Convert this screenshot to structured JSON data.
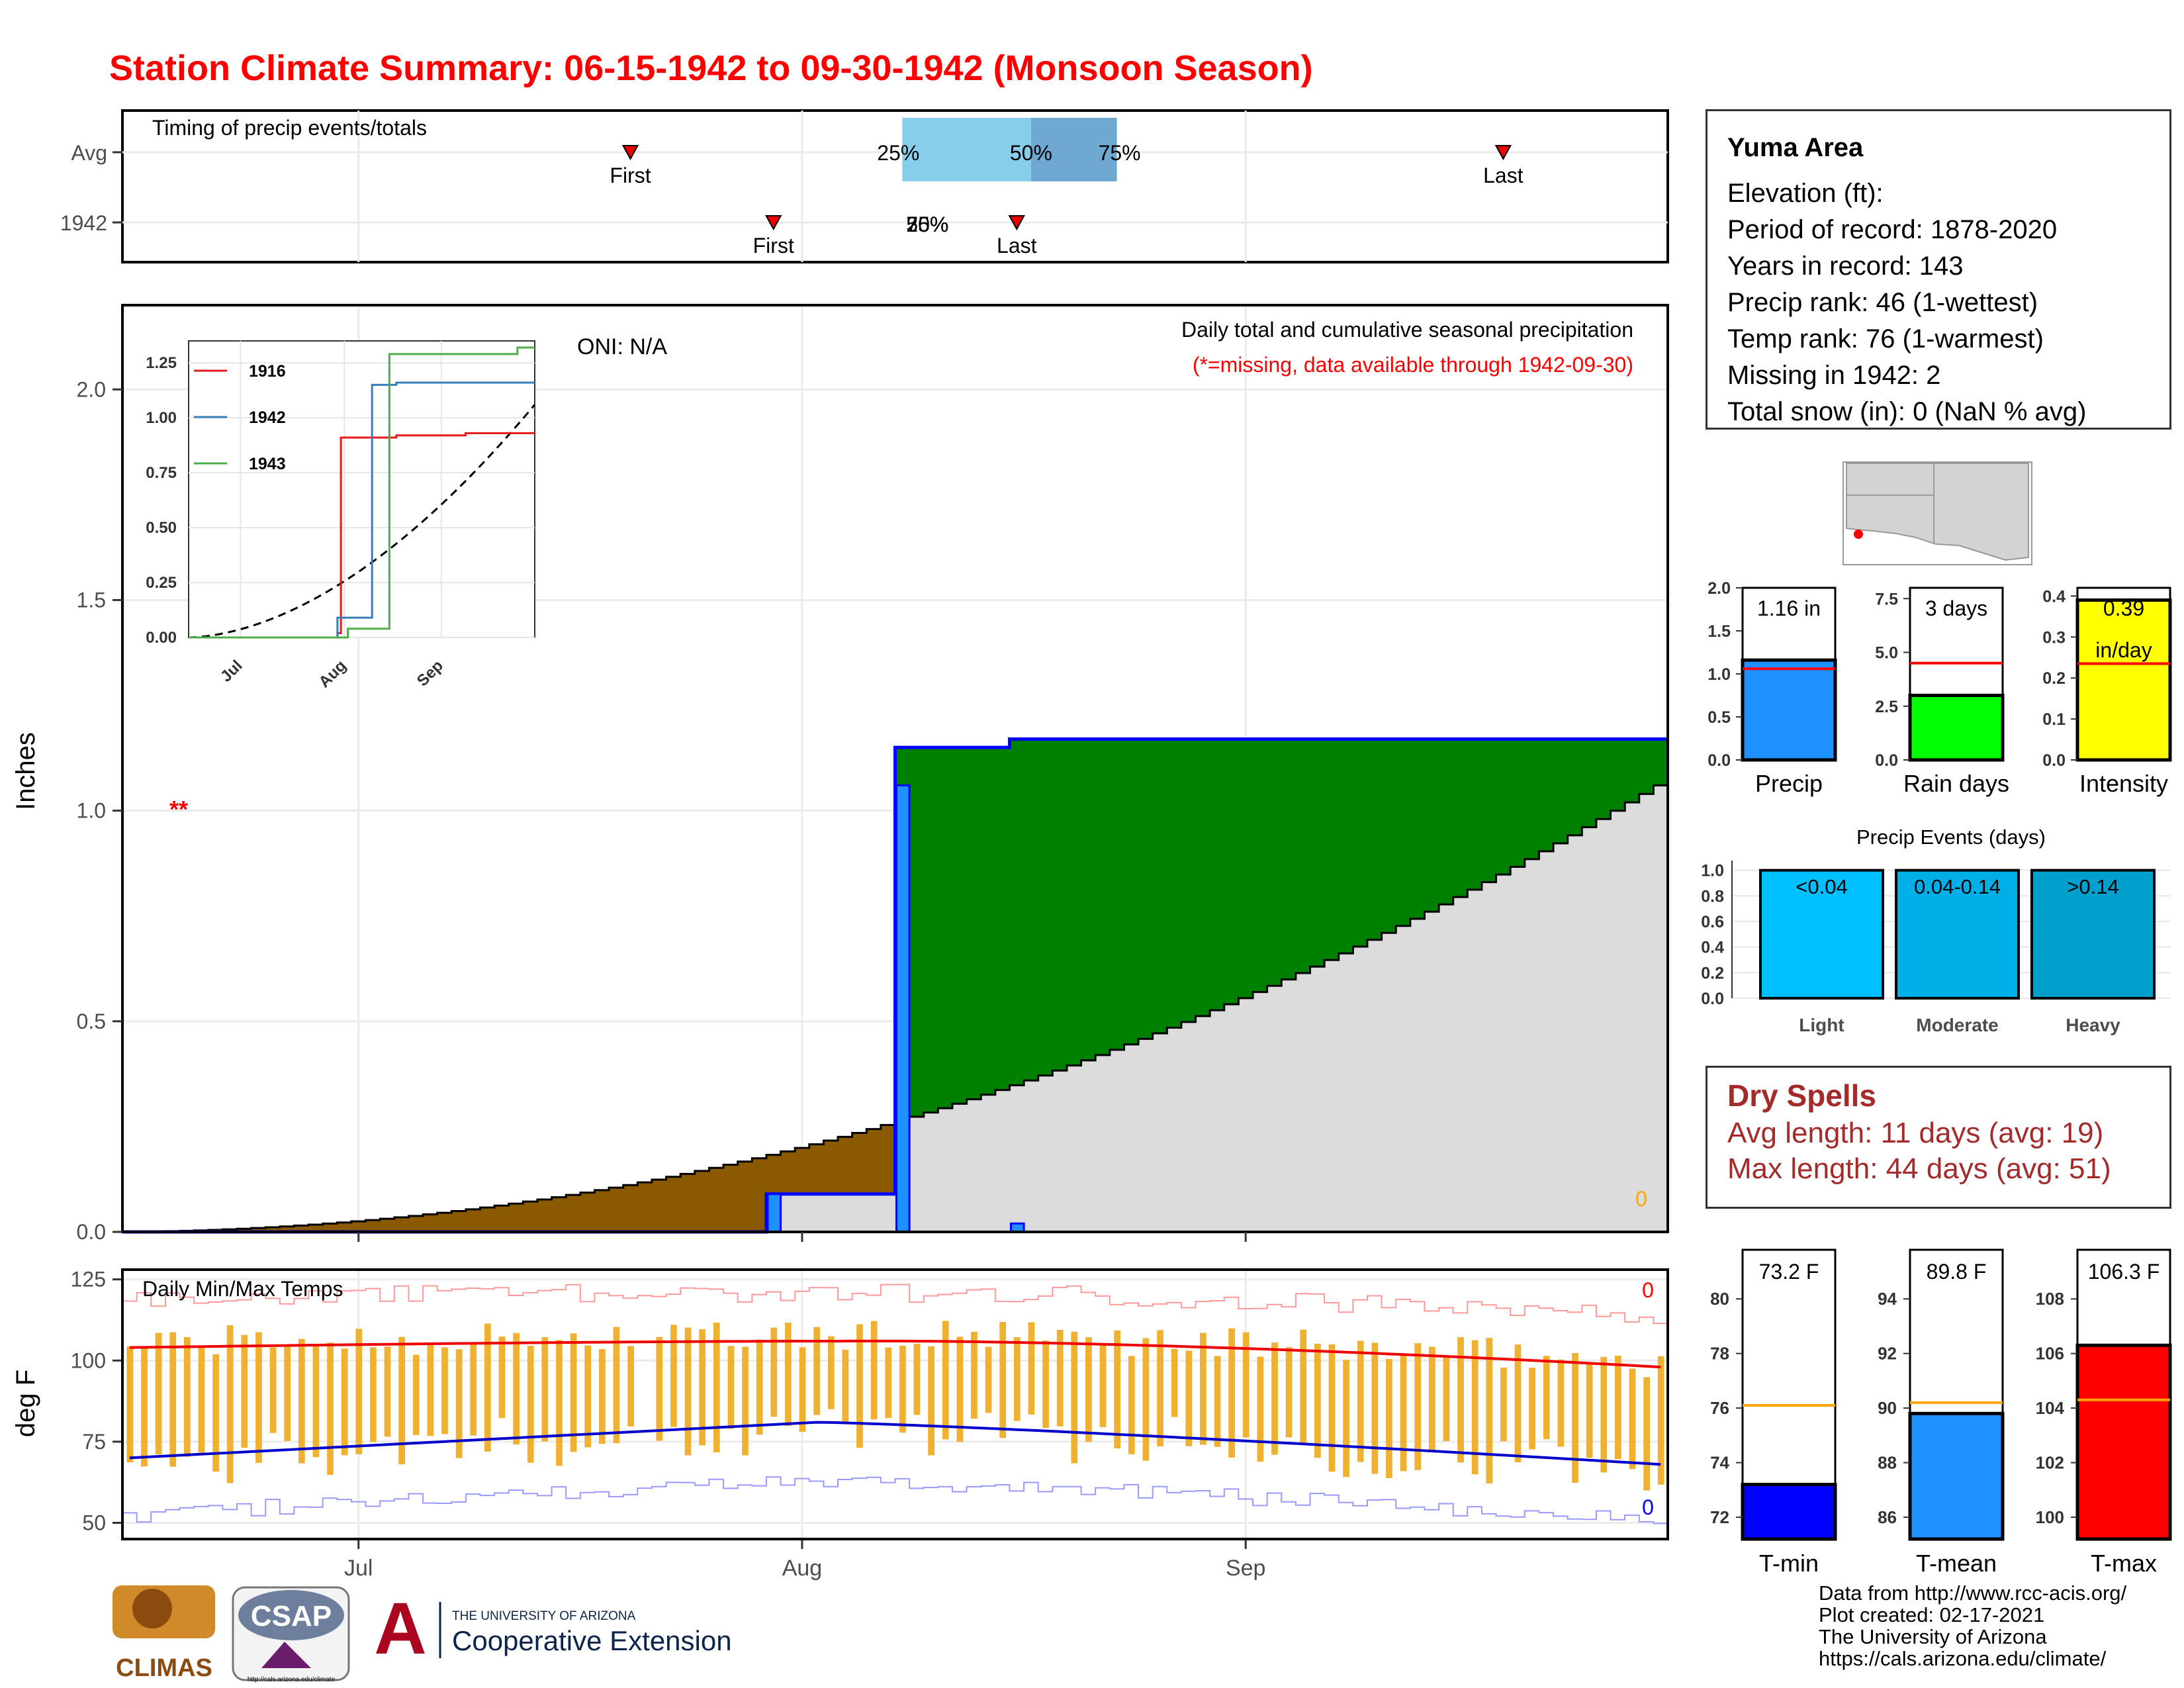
{
  "title": "Station Climate Summary: 06-15-1942 to 09-30-1942 (Monsoon Season)",
  "timing_panel": {
    "label": "Timing of precip events/totals",
    "rows": [
      "Avg",
      "1942"
    ],
    "avg": {
      "first_date": "1942-07-20",
      "last_date": "1942-09-19",
      "p25_date": "1942-08-08",
      "p50_date": "1942-08-17",
      "p75_date": "1942-08-23",
      "first_label": "First",
      "last_label": "Last",
      "p25_label": "25%",
      "p50_label": "50%",
      "p75_label": "75%"
    },
    "y1942": {
      "first_date": "1942-07-30",
      "last_date": "1942-08-16",
      "first_label": "First",
      "last_label": "Last",
      "pct_label": "25%50%75%"
    }
  },
  "precip_panel": {
    "ylabel": "Inches",
    "oni": "ONI: N/A",
    "caption": "Daily total and cumulative seasonal precipitation",
    "caption_missing": "(*=missing, data available through 1942-09-30)",
    "missing_marker": "**",
    "corner_value": "0",
    "yticks": [
      "0.0",
      "0.5",
      "1.0",
      "1.5",
      "2.0"
    ],
    "ylim": [
      0,
      2.2
    ]
  },
  "inset": {
    "yticks": [
      "0.00",
      "0.25",
      "0.50",
      "0.75",
      "1.00",
      "1.25"
    ],
    "xticks": [
      "Jul",
      "Aug",
      "Sep"
    ],
    "legend": [
      {
        "label": "1916",
        "color": "#e41a1c"
      },
      {
        "label": "1942",
        "color": "#377eb8"
      },
      {
        "label": "1943",
        "color": "#4daf4a"
      }
    ]
  },
  "temp_panel": {
    "label": "Daily Min/Max Temps",
    "ylabel": "deg F",
    "yticks": [
      "50",
      "75",
      "100",
      "125"
    ],
    "xticks": [
      "Jul",
      "Aug",
      "Sep"
    ],
    "max_count": "0",
    "min_count": "0"
  },
  "station": {
    "name": "Yuma Area",
    "lines": [
      "Elevation (ft):",
      "Period of record: 1878-2020",
      "Years in record: 143",
      "Precip rank: 46 (1-wettest)",
      "Temp rank: 76 (1-warmest)",
      "Missing in 1942: 2",
      "Total snow (in): 0 (NaN % avg)"
    ]
  },
  "summary_bars": [
    {
      "label": "Precip",
      "value_label": "1.16 in",
      "value": 1.16,
      "avg": 1.06,
      "color": "#1e90ff",
      "yticks": [
        "0.0",
        "0.5",
        "1.0",
        "1.5",
        "2.0"
      ],
      "ymin": 0,
      "ymax": 2.0,
      "tickvals": [
        0,
        0.5,
        1,
        1.5,
        2
      ]
    },
    {
      "label": "Rain days",
      "value_label": "3 days",
      "value": 3,
      "avg": 4.5,
      "color": "#00ff00",
      "yticks": [
        "0.0",
        "2.5",
        "5.0",
        "7.5"
      ],
      "ymin": 0,
      "ymax": 8.0,
      "tickvals": [
        0,
        2.5,
        5,
        7.5
      ]
    },
    {
      "label": "Intensity",
      "value_label": "0.39",
      "unit_label": "in/day",
      "value": 0.39,
      "avg": 0.235,
      "color": "#ffff00",
      "yticks": [
        "0.0",
        "0.1",
        "0.2",
        "0.3",
        "0.4"
      ],
      "ymin": 0,
      "ymax": 0.42,
      "tickvals": [
        0,
        0.1,
        0.2,
        0.3,
        0.4
      ]
    }
  ],
  "events": {
    "title": "Precip Events (days)",
    "yticks": [
      "0.0",
      "0.2",
      "0.4",
      "0.6",
      "0.8",
      "1.0"
    ],
    "bars": [
      {
        "label": "Light",
        "range": "<0.04",
        "value": 1.0,
        "color": "#00bfff"
      },
      {
        "label": "Moderate",
        "range": "0.04-0.14",
        "value": 1.0,
        "color": "#00afe8"
      },
      {
        "label": "Heavy",
        "range": ">0.14",
        "value": 1.0,
        "color": "#009fcc"
      }
    ]
  },
  "dry_spells": {
    "title": "Dry Spells",
    "avg_line": "Avg length: 11 days (avg: 19)",
    "max_line": "Max length: 44 days (avg: 51)"
  },
  "temp_bars": [
    {
      "label": "T-min",
      "value_label": "73.2 F",
      "value": 73.2,
      "avg": 76.1,
      "color": "#0000ff",
      "yticks": [
        "72",
        "74",
        "76",
        "78",
        "80"
      ],
      "tickvals": [
        72,
        74,
        76,
        78,
        80
      ],
      "ymin": 71.2,
      "ymax": 81.8
    },
    {
      "label": "T-mean",
      "value_label": "89.8 F",
      "value": 89.8,
      "avg": 90.2,
      "color": "#1e90ff",
      "yticks": [
        "86",
        "88",
        "90",
        "92",
        "94"
      ],
      "tickvals": [
        86,
        88,
        90,
        92,
        94
      ],
      "ymin": 85.2,
      "ymax": 95.8
    },
    {
      "label": "T-max",
      "value_label": "106.3 F",
      "value": 106.3,
      "avg": 104.3,
      "color": "#ff0000",
      "yticks": [
        "100",
        "102",
        "104",
        "106",
        "108"
      ],
      "tickvals": [
        100,
        102,
        104,
        106,
        108
      ],
      "ymin": 99.2,
      "ymax": 109.8
    }
  ],
  "credits": [
    "Data from http://www.rcc-acis.org/",
    "Plot created: 02-17-2021",
    "The University of Arizona",
    "https://cals.arizona.edu/climate/"
  ],
  "logos": {
    "climas": "CLIMAS",
    "csap": "CSAP",
    "csap_url": "http://cals.arizona.edu/climate",
    "ua_line1": "THE UNIVERSITY OF ARIZONA",
    "ua_line2": "Cooperative Extension"
  },
  "chart_data": {
    "type": "area",
    "start_date": "1942-06-15",
    "end_date": "1942-09-30",
    "xticks": [
      "Jul",
      "Aug",
      "Sep"
    ],
    "series": [
      {
        "name": "1942",
        "daily_precip": [
          {
            "date": "1942-07-30",
            "value": 0.09
          },
          {
            "date": "1942-08-08",
            "value": 1.06
          },
          {
            "date": "1942-08-16",
            "value": 0.02
          }
        ],
        "cumulative_total": 1.16
      },
      {
        "name": "avg_cumulative_end",
        "value": 1.06
      }
    ],
    "avg_temp_range": {
      "max_start": 104,
      "max_mid": 106,
      "max_end": 98,
      "min_start": 70,
      "min_mid": 81,
      "min_end": 68
    }
  }
}
